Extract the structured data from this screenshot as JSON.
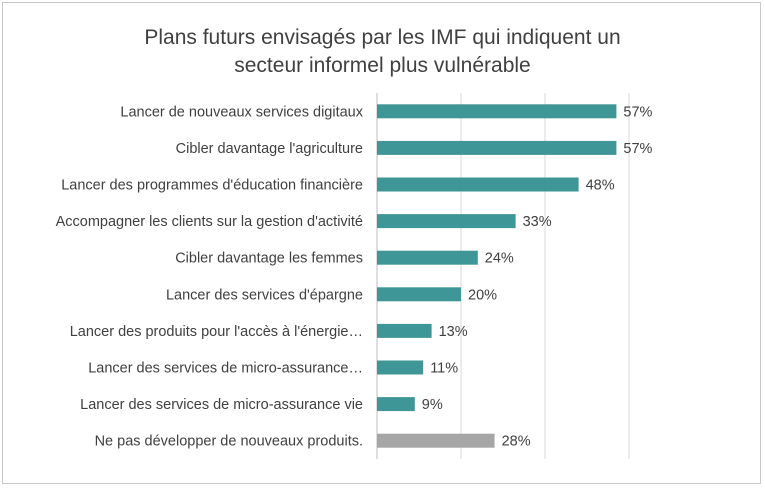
{
  "chart_data": {
    "type": "bar",
    "orientation": "horizontal",
    "title_lines": [
      "Plans futurs envisagés par les IMF qui indiquent un",
      "secteur informel plus vulnérable"
    ],
    "categories": [
      "Lancer de nouveaux services digitaux",
      "Cibler davantage l'agriculture",
      "Lancer des programmes d'éducation financière",
      "Accompagner les clients sur la gestion d'activité",
      "Cibler davantage les femmes",
      "Lancer des services d'épargne",
      "Lancer des produits pour l'accès à l'énergie…",
      "Lancer des services de micro-assurance…",
      "Lancer des services de micro-assurance vie",
      "Ne pas développer de nouveaux produits."
    ],
    "values": [
      57,
      57,
      48,
      33,
      24,
      20,
      13,
      11,
      9,
      28
    ],
    "value_labels": [
      "57%",
      "57%",
      "48%",
      "33%",
      "24%",
      "20%",
      "13%",
      "11%",
      "9%",
      "28%"
    ],
    "bar_colors": [
      "#3f9696",
      "#3f9696",
      "#3f9696",
      "#3f9696",
      "#3f9696",
      "#3f9696",
      "#3f9696",
      "#3f9696",
      "#3f9696",
      "#a6a6a6"
    ],
    "xlim": [
      0,
      60
    ],
    "grid": true,
    "xaxis_labels_visible": false,
    "xlabel": "",
    "ylabel": ""
  }
}
